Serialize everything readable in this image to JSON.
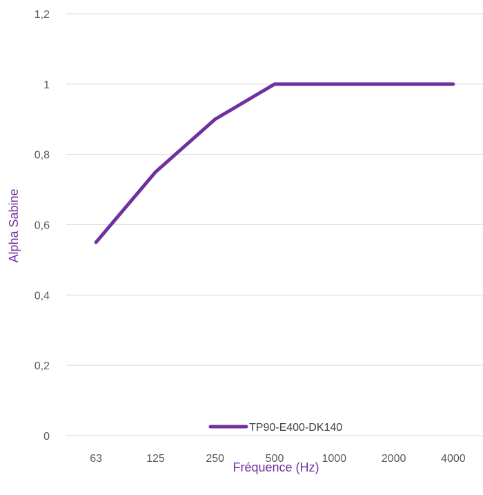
{
  "chart_data": {
    "type": "line",
    "categories": [
      "63",
      "125",
      "250",
      "500",
      "1000",
      "2000",
      "4000"
    ],
    "series": [
      {
        "name": "TP90-E400-DK140",
        "values": [
          0.55,
          0.75,
          0.9,
          1.0,
          1.0,
          1.0,
          1.0
        ],
        "color": "#7030a0"
      }
    ],
    "xlabel": "Fréquence (Hz)",
    "ylabel": "Alpha Sabine",
    "ylim": [
      0,
      1.2
    ],
    "yticks": [
      "0",
      "0,2",
      "0,4",
      "0,6",
      "0,8",
      "1",
      "1,2"
    ],
    "ytick_values": [
      0,
      0.2,
      0.4,
      0.6,
      0.8,
      1.0,
      1.2
    ],
    "grid": true,
    "legend_position": "bottom-inside"
  }
}
